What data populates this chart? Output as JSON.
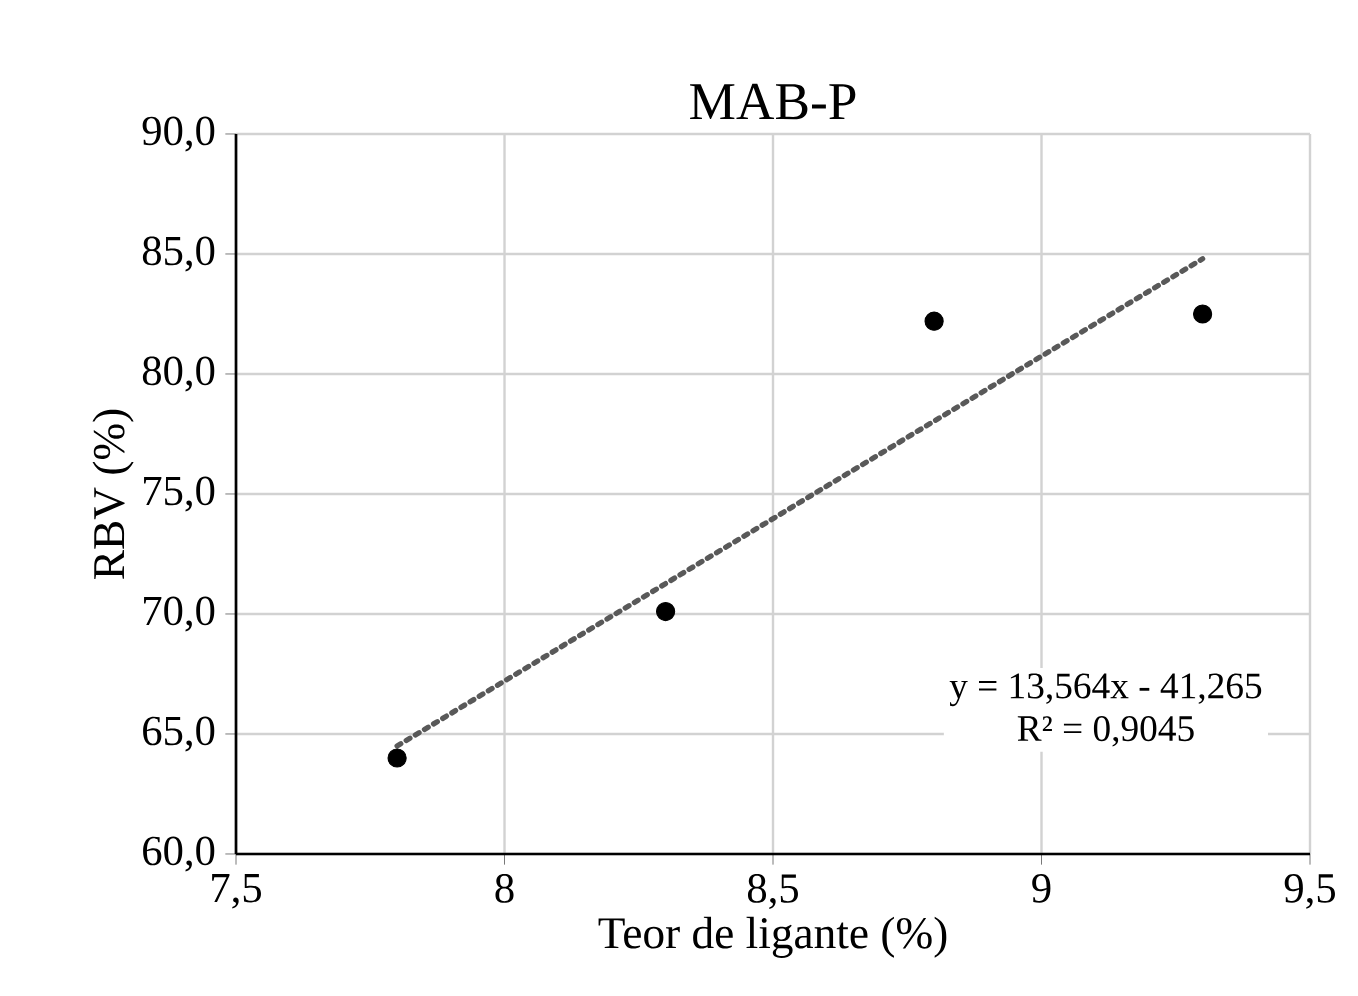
{
  "chart_data": {
    "type": "scatter",
    "title": "MAB-P",
    "xlabel": "Teor de ligante (%)",
    "ylabel": "RBV (%)",
    "series": [
      {
        "color": "#000000",
        "marker": "circle",
        "x": [
          7.8,
          8.3,
          8.8,
          9.3
        ],
        "values": [
          64.0,
          70.1,
          82.2,
          82.5
        ]
      },
      {
        "type": "line",
        "color": "#595959",
        "line_style": "dotted",
        "marker": "none",
        "x": [
          7.8,
          9.3
        ],
        "values": [
          64.5,
          84.8
        ]
      }
    ],
    "xlim": [
      7.5,
      9.5
    ],
    "ylim": [
      60,
      90
    ],
    "xticks": [
      {
        "value": 7.5,
        "label": "7,5"
      },
      8,
      {
        "value": 8.5,
        "label": "8,5"
      },
      9,
      {
        "value": 9.5,
        "label": "9,5"
      }
    ],
    "yticks": [
      {
        "value": 60,
        "label": "60,0"
      },
      {
        "value": 65,
        "label": "65,0"
      },
      {
        "value": 70,
        "label": "70,0"
      },
      {
        "value": 75,
        "label": "75,0"
      },
      {
        "value": 80,
        "label": "80,0"
      },
      {
        "value": 85,
        "label": "85,0"
      },
      {
        "value": 90,
        "label": "90,0"
      }
    ],
    "grid": true,
    "annotations": [
      "y = 13,564x - 41,265",
      "R² = 0,9045"
    ]
  }
}
